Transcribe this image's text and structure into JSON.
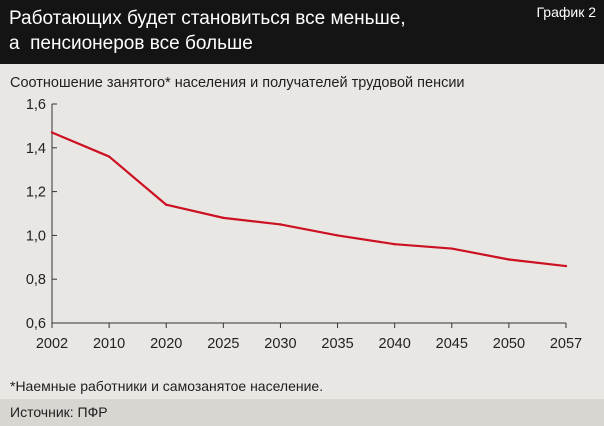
{
  "header": {
    "title_lines": [
      "Работающих будет становиться все меньше,",
      "а  пенсионеров все больше"
    ],
    "chart_label": "График 2"
  },
  "colors": {
    "line": "#cc1122",
    "header_bg": "#141414",
    "background": "#e9e7e4"
  },
  "chart_data": {
    "type": "line",
    "title": "Работающих будет становиться все меньше, а  пенсионеров все больше",
    "subtitle": "Соотношение занятого* населения и получателей трудовой пенсии",
    "categories": [
      "2002",
      "2010",
      "2020",
      "2025",
      "2030",
      "2035",
      "2040",
      "2045",
      "2050",
      "2057"
    ],
    "series": [
      {
        "values": [
          1.47,
          1.36,
          1.14,
          1.08,
          1.05,
          1.0,
          0.96,
          0.94,
          0.89,
          0.86
        ]
      }
    ],
    "ylim": [
      0.6,
      1.6
    ],
    "yticks": [
      "0,6",
      "0,8",
      "1,0",
      "1,2",
      "1,4",
      "1,6"
    ],
    "ytick_values": [
      0.6,
      0.8,
      1.0,
      1.2,
      1.4,
      1.6
    ],
    "grid": false
  },
  "footer": {
    "footnote": "*Наемные работники и самозанятое население.",
    "source": "Источник: ПФР"
  }
}
